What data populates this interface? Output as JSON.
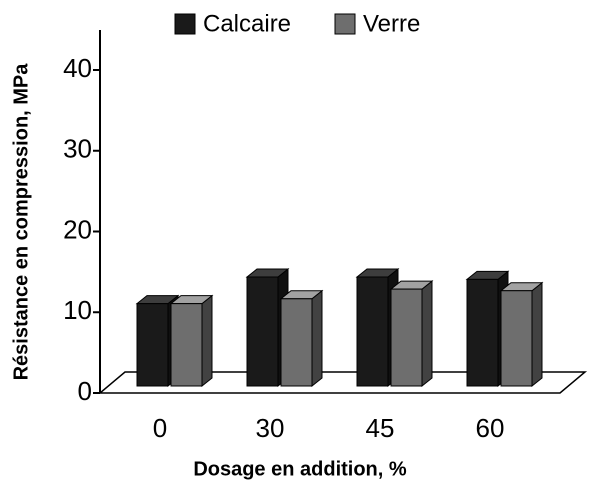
{
  "chart_data": {
    "type": "bar3d",
    "xlabel": "Dosage en addition, %",
    "ylabel": "Résistance en compression, MPa",
    "categories": [
      "0",
      "30",
      "45",
      "60"
    ],
    "series": [
      {
        "name": "Calcaire",
        "color": "#1a1a1a",
        "values": [
          10.2,
          13.5,
          13.5,
          13.2
        ]
      },
      {
        "name": "Verre",
        "color": "#6e6e6e",
        "values": [
          10.2,
          10.8,
          12.0,
          11.8
        ]
      }
    ],
    "ylim": [
      0,
      40
    ],
    "yticks": [
      0,
      10,
      20,
      30,
      40
    ],
    "legend": "top"
  }
}
